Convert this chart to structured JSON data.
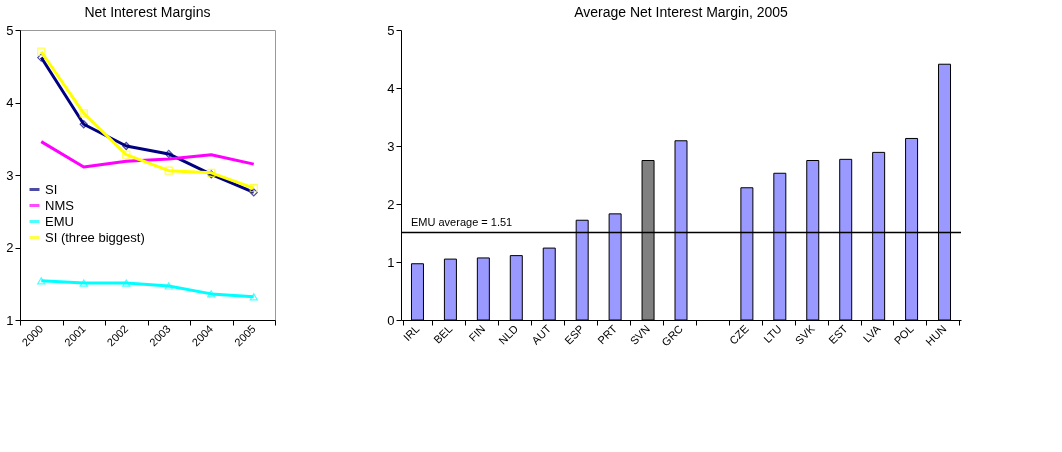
{
  "chart_data": [
    {
      "type": "line",
      "title": "Net Interest Margins",
      "categories": [
        "2000",
        "2001",
        "2002",
        "2003",
        "2004",
        "2005"
      ],
      "ylim": [
        1,
        5
      ],
      "yticks": [
        1,
        2,
        3,
        4,
        5
      ],
      "grid": false,
      "legend": "left",
      "line_style": "solid",
      "series": [
        {
          "name": "SI",
          "color": "#000080",
          "marker": "diamond",
          "values": [
            4.62,
            3.7,
            3.4,
            3.29,
            3.01,
            2.76
          ]
        },
        {
          "name": "NMS",
          "color": "#ff00ff",
          "marker": "none",
          "values": [
            3.46,
            3.11,
            3.19,
            3.22,
            3.28,
            3.15
          ]
        },
        {
          "name": "EMU",
          "color": "#00ffff",
          "marker": "triangle",
          "values": [
            1.54,
            1.51,
            1.51,
            1.47,
            1.36,
            1.32
          ]
        },
        {
          "name": "SI (three biggest)",
          "color": "#ffff00",
          "marker": "square",
          "values": [
            4.7,
            3.85,
            3.28,
            3.06,
            3.03,
            2.82
          ]
        }
      ]
    },
    {
      "type": "bar",
      "title": "Average Net Interest Margin, 2005",
      "categories": [
        "IRL",
        "BEL",
        "FIN",
        "NLD",
        "AUT",
        "ESP",
        "PRT",
        "SVN",
        "GRC",
        null,
        "CZE",
        "LTU",
        "SVK",
        "EST",
        "LVA",
        "POL",
        "HUN"
      ],
      "ylim": [
        0,
        5
      ],
      "yticks": [
        0,
        1,
        2,
        3,
        4,
        5
      ],
      "grid": false,
      "values": [
        0.97,
        1.05,
        1.07,
        1.11,
        1.24,
        1.72,
        1.83,
        2.75,
        3.09,
        null,
        2.28,
        2.53,
        2.75,
        2.77,
        2.89,
        3.13,
        4.41
      ],
      "colors": [
        "#9999ff",
        "#9999ff",
        "#9999ff",
        "#9999ff",
        "#9999ff",
        "#9999ff",
        "#9999ff",
        "#808080",
        "#9999ff",
        "#9999ff",
        "#9999ff",
        "#9999ff",
        "#9999ff",
        "#9999ff",
        "#9999ff",
        "#9999ff",
        "#9999ff"
      ],
      "ref_lines": [
        {
          "axis": "y",
          "value": 1.51,
          "label": "EMU average = 1.51",
          "color": "#000000"
        }
      ]
    }
  ]
}
